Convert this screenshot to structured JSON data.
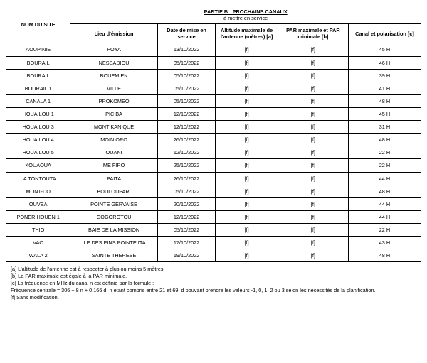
{
  "header": {
    "partie_main": "PARTIE B : PROCHAINS CANAUX",
    "partie_sub": "à mettre en service",
    "col_site": "NOM DU SITE",
    "col_lieu": "Lieu d'émission",
    "col_date": "Date de mise en service",
    "col_alt": "Altitude maximale de l'antenne (mètres) [a]",
    "col_par": "PAR maximale et PAR minimale [b]",
    "col_canal": "Canal et polarisation [c]"
  },
  "rows": [
    {
      "site": "AOUPINIE",
      "lieu": "POYA",
      "date": "13/10/2022",
      "alt": "[f]",
      "par": "[f]",
      "canal": "45 H"
    },
    {
      "site": "BOURAIL",
      "lieu": "NESSADIOU",
      "date": "05/10/2022",
      "alt": "[f]",
      "par": "[f]",
      "canal": "46 H"
    },
    {
      "site": "BOURAIL",
      "lieu": "BOUEMIEN",
      "date": "05/10/2022",
      "alt": "[f]",
      "par": "[f]",
      "canal": "39 H"
    },
    {
      "site": "BOURAIL 1",
      "lieu": "VILLE",
      "date": "05/10/2022",
      "alt": "[f]",
      "par": "[f]",
      "canal": "41 H"
    },
    {
      "site": "CANALA 1",
      "lieu": "PROKOMEO",
      "date": "05/10/2022",
      "alt": "[f]",
      "par": "[f]",
      "canal": "48 H"
    },
    {
      "site": "HOUAILOU 1",
      "lieu": "PIC BA",
      "date": "12/10/2022",
      "alt": "[f]",
      "par": "[f]",
      "canal": "45 H"
    },
    {
      "site": "HOUAILOU 3",
      "lieu": "MONT KANIQUE",
      "date": "12/10/2022",
      "alt": "[f]",
      "par": "[f]",
      "canal": "31 H"
    },
    {
      "site": "HOUAILOU 4",
      "lieu": "MOIN ORO",
      "date": "26/10/2022",
      "alt": "[f]",
      "par": "[f]",
      "canal": "48 H"
    },
    {
      "site": "HOUAILOU 5",
      "lieu": "OUANI",
      "date": "12/10/2022",
      "alt": "[f]",
      "par": "[f]",
      "canal": "22 H"
    },
    {
      "site": "KOUAOUA",
      "lieu": "ME FIRO",
      "date": "25/10/2022",
      "alt": "[f]",
      "par": "[f]",
      "canal": "22 H"
    },
    {
      "site": "LA TONTOUTA",
      "lieu": "PAITA",
      "date": "26/10/2022",
      "alt": "[f]",
      "par": "[f]",
      "canal": "44 H"
    },
    {
      "site": "MONT-DO",
      "lieu": "BOULOUPARI",
      "date": "05/10/2022",
      "alt": "[f]",
      "par": "[f]",
      "canal": "48 H"
    },
    {
      "site": "OUVEA",
      "lieu": "POINTE GERVAISE",
      "date": "20/10/2022",
      "alt": "[f]",
      "par": "[f]",
      "canal": "44 H"
    },
    {
      "site": "PONERIHOUEN 1",
      "lieu": "GOGOROTOU",
      "date": "12/10/2022",
      "alt": "[f]",
      "par": "[f]",
      "canal": "44 H"
    },
    {
      "site": "THIO",
      "lieu": "BAIE DE LA MISSION",
      "date": "05/10/2022",
      "alt": "[f]",
      "par": "[f]",
      "canal": "22 H"
    },
    {
      "site": "VAO",
      "lieu": "ILE DES PINS POINTE ITA",
      "date": "17/10/2022",
      "alt": "[f]",
      "par": "[f]",
      "canal": "43 H"
    },
    {
      "site": "WALA 2",
      "lieu": "SAINTE THERESE",
      "date": "19/10/2022",
      "alt": "[f]",
      "par": "[f]",
      "canal": "48 H"
    }
  ],
  "footnotes": {
    "a": "[a] L'altitude de l'antenne est à respecter à plus ou moins 5 mètres.",
    "b": "[b] La PAR maximale est égale à la PAR minimale.",
    "c1": "[c] La fréquence en MHz du canal n est définie par la formule :",
    "c2": "Fréquence centrale = 306 + 8 n + 0.166 d, n étant compris entre 21 et 69, d pouvant prendre les valeurs -1, 0, 1, 2 ou 3 selon les nécessités de la planification.",
    "f": "[f] Sans modification."
  },
  "style": {
    "border_color": "#000000",
    "background_color": "#ffffff",
    "text_color": "#000000",
    "font_size_pt": 7.3
  }
}
